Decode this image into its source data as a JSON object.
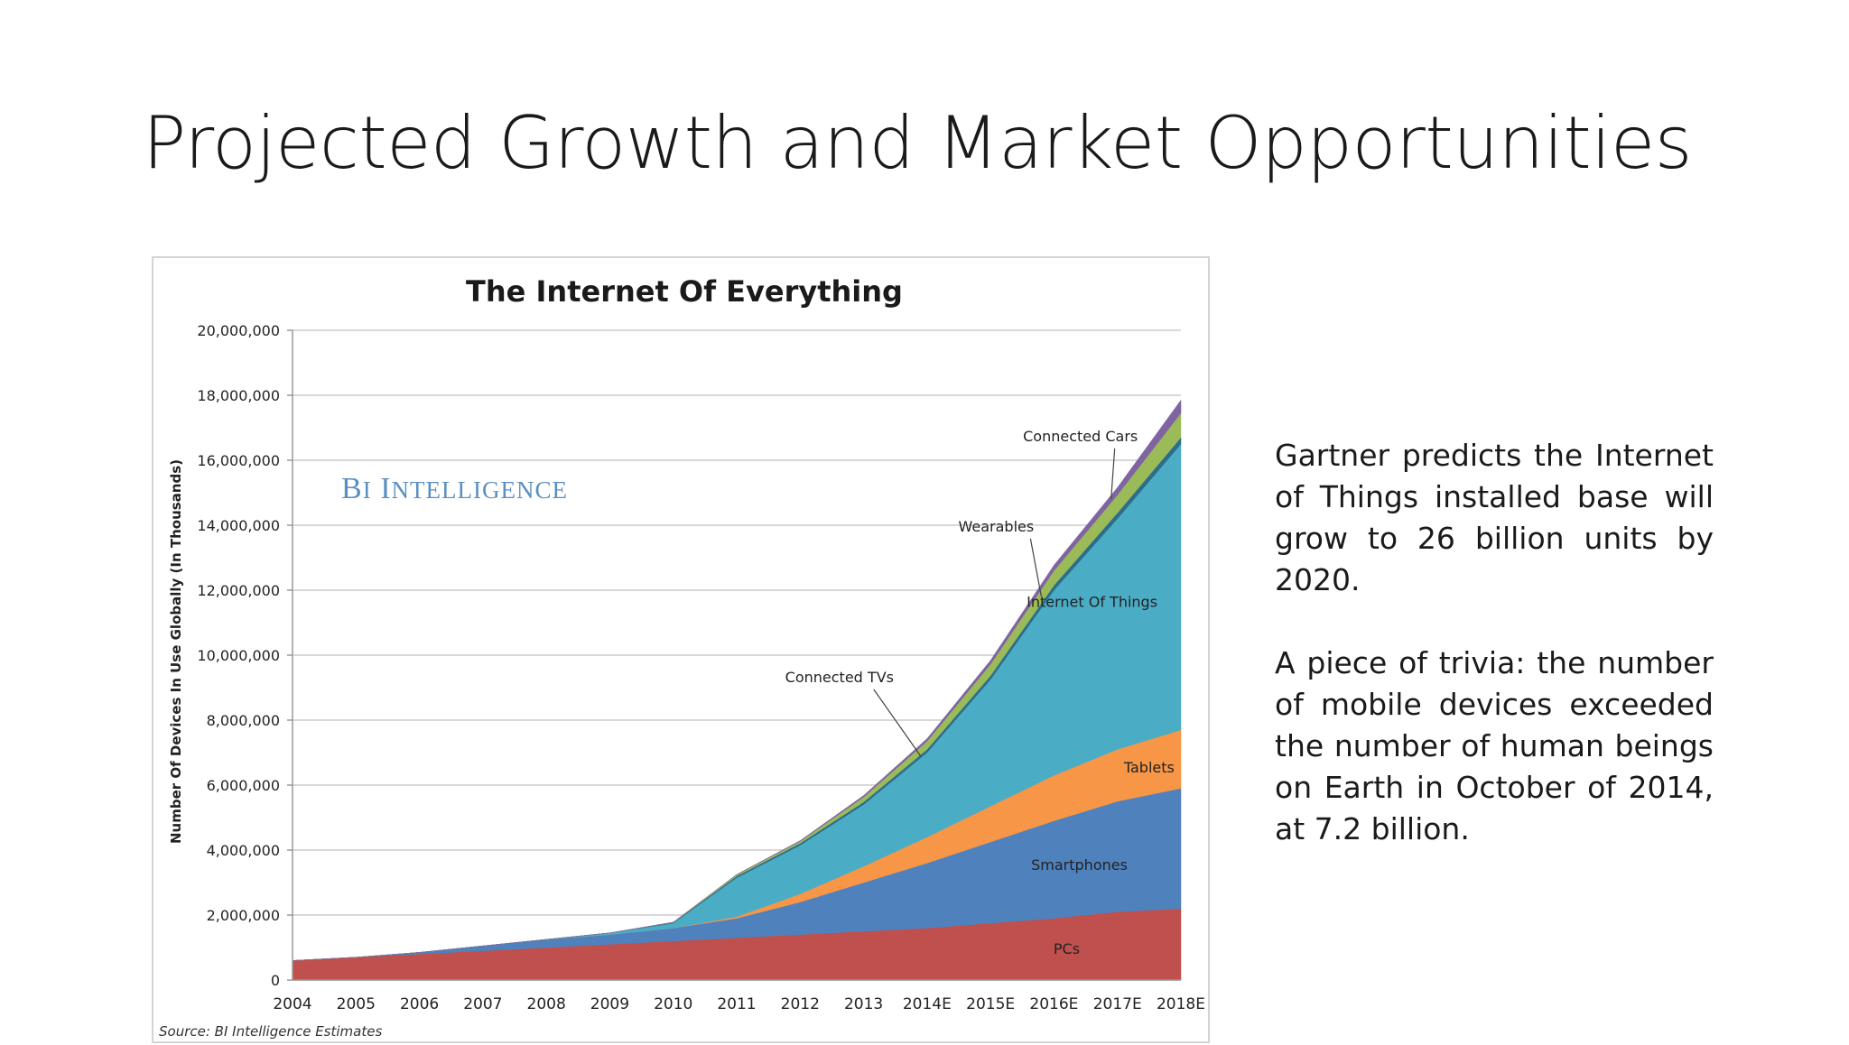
{
  "slide": {
    "title": "Projected Growth and Market Opportunities",
    "paragraphs": [
      "Gartner predicts the Internet of Things installed base will grow to 26 billion units by 2020.",
      "A piece of trivia: the number of mobile devices exceeded the number of human beings on Earth in October of 2014, at 7.2 billion."
    ]
  },
  "chart_data": {
    "type": "area",
    "stacked": true,
    "title": "The Internet Of Everything",
    "xlabel": "",
    "ylabel": "Number Of Devices In Use Globally (In Thousands)",
    "watermark": "BI Intelligence",
    "source": "Source: BI Intelligence Estimates",
    "x": [
      "2004",
      "2005",
      "2006",
      "2007",
      "2008",
      "2009",
      "2010",
      "2011",
      "2012",
      "2013",
      "2014E",
      "2015E",
      "2016E",
      "2017E",
      "2018E"
    ],
    "ylim": [
      0,
      20000000
    ],
    "yticks": [
      0,
      2000000,
      4000000,
      6000000,
      8000000,
      10000000,
      12000000,
      14000000,
      16000000,
      18000000,
      20000000
    ],
    "ytick_labels": [
      "0",
      "2,000,000",
      "4,000,000",
      "6,000,000",
      "8,000,000",
      "10,000,000",
      "12,000,000",
      "14,000,000",
      "16,000,000",
      "18,000,000",
      "20,000,000"
    ],
    "grid": true,
    "series": [
      {
        "name": "PCs",
        "color": "#c0504d",
        "values": [
          600000,
          700000,
          800000,
          900000,
          1000000,
          1100000,
          1200000,
          1300000,
          1400000,
          1500000,
          1600000,
          1750000,
          1900000,
          2100000,
          2200000
        ]
      },
      {
        "name": "Smartphones",
        "color": "#4f81bd",
        "values": [
          0,
          0,
          50000,
          150000,
          250000,
          300000,
          400000,
          600000,
          1000000,
          1500000,
          2000000,
          2500000,
          3000000,
          3400000,
          3700000
        ]
      },
      {
        "name": "Tablets",
        "color": "#f79646",
        "values": [
          0,
          0,
          0,
          0,
          0,
          0,
          0,
          50000,
          250000,
          500000,
          800000,
          1100000,
          1400000,
          1600000,
          1800000
        ]
      },
      {
        "name": "Internet Of Things",
        "color": "#4bacc6",
        "values": [
          0,
          0,
          0,
          0,
          0,
          50000,
          150000,
          1200000,
          1500000,
          1900000,
          2600000,
          3900000,
          5700000,
          7100000,
          8800000
        ]
      },
      {
        "name": "Connected TVs",
        "color": "#2c6e8a",
        "values": [
          0,
          0,
          0,
          0,
          0,
          0,
          20000,
          50000,
          60000,
          80000,
          100000,
          120000,
          150000,
          180000,
          200000
        ]
      },
      {
        "name": "Wearables",
        "color": "#9bbb59",
        "values": [
          0,
          0,
          0,
          0,
          0,
          0,
          10000,
          40000,
          60000,
          150000,
          250000,
          350000,
          450000,
          550000,
          750000
        ]
      },
      {
        "name": "Connected Cars",
        "color": "#8064a2",
        "values": [
          0,
          0,
          0,
          0,
          0,
          0,
          0,
          10000,
          20000,
          50000,
          80000,
          120000,
          170000,
          230000,
          400000
        ]
      }
    ],
    "annotations": [
      {
        "text": "Connected Cars",
        "series": "Connected Cars"
      },
      {
        "text": "Wearables",
        "series": "Wearables"
      },
      {
        "text": "Connected TVs",
        "series": "Connected TVs"
      },
      {
        "text": "Internet Of Things",
        "series": "Internet Of Things"
      },
      {
        "text": "Tablets",
        "series": "Tablets"
      },
      {
        "text": "Smartphones",
        "series": "Smartphones"
      },
      {
        "text": "PCs",
        "series": "PCs"
      }
    ]
  }
}
